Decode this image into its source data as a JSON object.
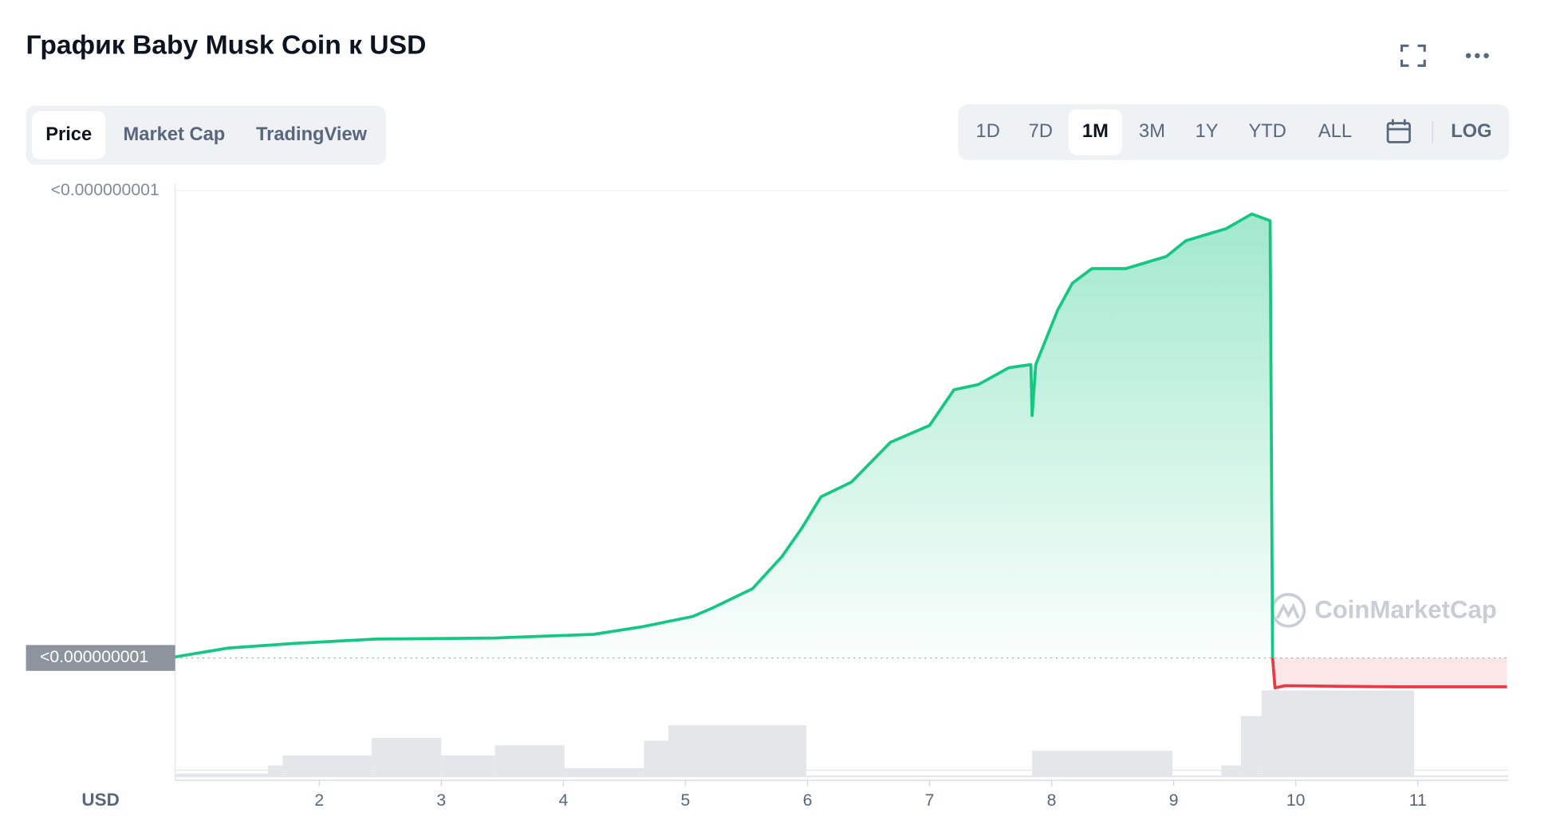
{
  "header": {
    "title": "График Baby Musk Coin к USD"
  },
  "tabs": [
    "Price",
    "Market Cap",
    "TradingView"
  ],
  "ranges": [
    "1D",
    "7D",
    "1M",
    "3M",
    "1Y",
    "YTD",
    "ALL"
  ],
  "log_button": "LOG",
  "currency": "USD",
  "watermark": "CoinMarketCap",
  "chart_data": {
    "type": "line",
    "xlim": [
      0.82,
      11.74
    ],
    "xticks": [
      2,
      3,
      4,
      5,
      6,
      7,
      8,
      9,
      10,
      11
    ],
    "ylim": [
      0,
      1
    ],
    "yticks": [
      {
        "value": 1.0,
        "label": "<0.000000001"
      },
      {
        "value": 0.11,
        "label": "<0.000000001"
      }
    ],
    "series": [
      {
        "color": "#16c784",
        "x": [
          0.82,
          1.26,
          1.82,
          2.47,
          3.44,
          4.25,
          4.66,
          5.06,
          5.22,
          5.55,
          5.79,
          5.95,
          6.11,
          6.36,
          6.68,
          7.0,
          7.2,
          7.4,
          7.65,
          7.83,
          7.84,
          7.87,
          8.05,
          8.17,
          8.33,
          8.61,
          8.94,
          9.1,
          9.43,
          9.64,
          9.79,
          9.81
        ],
        "values": [
          0.112,
          0.129,
          0.138,
          0.146,
          0.148,
          0.155,
          0.17,
          0.189,
          0.205,
          0.242,
          0.303,
          0.356,
          0.417,
          0.445,
          0.521,
          0.553,
          0.621,
          0.631,
          0.663,
          0.669,
          0.572,
          0.669,
          0.773,
          0.824,
          0.852,
          0.852,
          0.875,
          0.905,
          0.928,
          0.956,
          0.943,
          0.11
        ]
      },
      {
        "color": "#ea3943",
        "x": [
          9.81,
          9.83,
          9.91,
          10.8,
          11.73
        ],
        "values": [
          0.11,
          0.053,
          0.057,
          0.055,
          0.055
        ]
      }
    ],
    "volume": {
      "color": "#e4e6ea",
      "y2lim": [
        0,
        1
      ],
      "bins": [
        0.82,
        1.58,
        1.7,
        2.43,
        3.0,
        3.44,
        4.01,
        4.66,
        4.86,
        5.99,
        7.84,
        8.99,
        9.39,
        9.55,
        9.72,
        10.97,
        11.74
      ],
      "values": [
        0.04,
        0.13,
        0.24,
        0.43,
        0.24,
        0.35,
        0.1,
        0.4,
        0.57,
        0.02,
        0.29,
        0.02,
        0.13,
        0.67,
        0.95,
        0.02
      ]
    }
  }
}
